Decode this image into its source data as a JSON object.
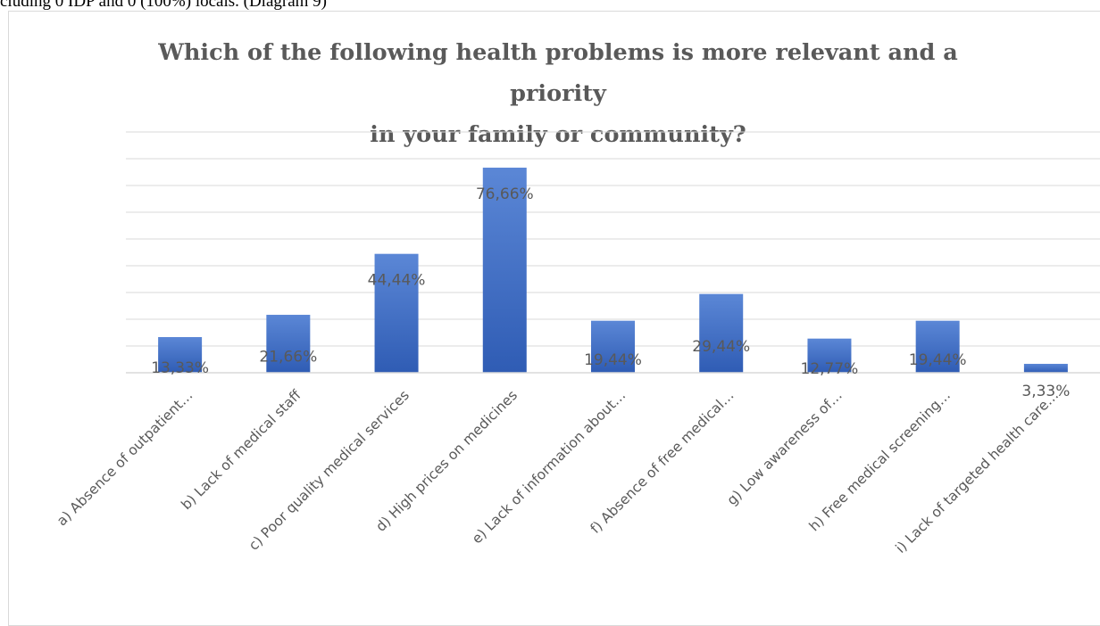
{
  "page": {
    "intro_text": "cluding 0 IDP and 0 (100%) locals. (Diagram 9)"
  },
  "chart_data": {
    "type": "bar",
    "title": "Which of the following health problems is more relevant and a priority in your family or community?",
    "title_lines": [
      "Which of the following health problems is more relevant and a priority",
      "in your family or community?"
    ],
    "categories": [
      "a) Absence of outpatient…",
      "b) Lack of medical staff",
      "c) Poor quality medical services",
      "d) High prices on medicines",
      "e) Lack of information about…",
      "f) Absence of free medical…",
      "g) Low awareness of…",
      "h) Free medical screening…",
      "i) Lack of targeted health care…"
    ],
    "values": [
      13.33,
      21.66,
      44.44,
      76.66,
      19.44,
      29.44,
      12.77,
      19.44,
      3.33
    ],
    "data_labels": [
      "13,33%",
      "21,66%",
      "44,44%",
      "76,66%",
      "19,44%",
      "29,44%",
      "12,77%",
      "19,44%",
      "3,33%"
    ],
    "xlabel": "",
    "ylabel": "",
    "ylim": [
      0,
      90
    ],
    "y_axis_labels_shown": false,
    "grid": true,
    "legend": "none",
    "bar_color": "#4472c4",
    "bar_gradient": [
      "#5b87d6",
      "#2f5cb4"
    ],
    "gridline_color": "#d9d9d9",
    "label_color": "#595959"
  }
}
